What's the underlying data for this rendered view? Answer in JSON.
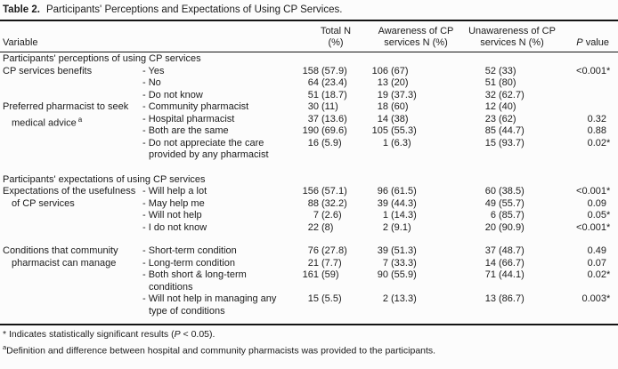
{
  "page": {
    "background": "#fcfcfc",
    "text_color": "#1b1b1b",
    "rule_color": "#141414"
  },
  "table": {
    "title": {
      "label": "Table 2.",
      "text": "Participants' Perceptions and Expectations of Using CP Services."
    },
    "header": {
      "variable": "Variable",
      "total_line1": "Total N",
      "total_line2": "(%)",
      "aware_line1": "Awareness of CP",
      "aware_line2": "services N (%)",
      "unaware_line1": "Unawareness of CP",
      "unaware_line2": "services N (%)",
      "p_italic": "P",
      "p_rest": " value"
    },
    "sections": [
      {
        "header": "Participants' perceptions of using CP services",
        "groups": [
          {
            "var1": "CP services benefits",
            "rows": [
              {
                "item": "- Yes",
                "total": "158 (57.9)",
                "aware": "106 (67)",
                "unaware": "52 (33)",
                "p": "<0.001*"
              },
              {
                "item": "- No",
                "total": "64 (23.4)",
                "aware": "13 (20)",
                "unaware": "51 (80)",
                "p": ""
              },
              {
                "item": "- Do not know",
                "total": "51 (18.7)",
                "aware": "19 (37.3)",
                "unaware": "32 (62.7)",
                "p": ""
              }
            ]
          },
          {
            "var1": "Preferred pharmacist to seek",
            "var2": "medical advice",
            "var2_sup": "a",
            "rows": [
              {
                "item": "- Community pharmacist",
                "total": "30 (11)",
                "aware": "18 (60)",
                "unaware": "12 (40)",
                "p": ""
              },
              {
                "item": "- Hospital pharmacist",
                "total": "37 (13.6)",
                "aware": "14 (38)",
                "unaware": "23 (62)",
                "p": "0.32"
              },
              {
                "item": "- Both are the same",
                "total": "190 (69.6)",
                "aware": "105 (55.3)",
                "unaware": "85 (44.7)",
                "p": "0.88"
              },
              {
                "item": "- Do not appreciate the care",
                "item2": "provided by any pharmacist",
                "total": "16 (5.9)",
                "aware": "1 (6.3)",
                "unaware": "15 (93.7)",
                "p": "0.02*"
              }
            ]
          }
        ]
      },
      {
        "header": "Participants' expectations of using CP services",
        "groups": [
          {
            "var1": "Expectations of the usefulness",
            "var2": "of CP services",
            "rows": [
              {
                "item": "- Will help a lot",
                "total": "156 (57.1)",
                "aware": "96 (61.5)",
                "unaware": "60 (38.5)",
                "p": "<0.001*"
              },
              {
                "item": "- May help me",
                "total": "88 (32.2)",
                "aware": "39 (44.3)",
                "unaware": "49 (55.7)",
                "p": "0.09"
              },
              {
                "item": "- Will not help",
                "total": "7 (2.6)",
                "aware": "1 (14.3)",
                "unaware": "6 (85.7)",
                "p": "0.05*"
              },
              {
                "item": "- I do not know",
                "total": "22 (8)",
                "aware": "2 (9.1)",
                "unaware": "20 (90.9)",
                "p": "<0.001*"
              }
            ]
          },
          {
            "var1": "Conditions that community",
            "var2": "pharmacist can manage",
            "rows": [
              {
                "item": "- Short-term condition",
                "total": "76 (27.8)",
                "aware": "39 (51.3)",
                "unaware": "37 (48.7)",
                "p": "0.49"
              },
              {
                "item": "- Long-term condition",
                "total": "21 (7.7)",
                "aware": "7 (33.3)",
                "unaware": "14 (66.7)",
                "p": "0.07"
              },
              {
                "item": "- Both short & long-term",
                "item2": "conditions",
                "total": "161 (59)",
                "aware": "90 (55.9)",
                "unaware": "71 (44.1)",
                "p": "0.02*"
              },
              {
                "item": "- Will not help in managing any",
                "item2": "type of conditions",
                "total": "15 (5.5)",
                "aware": "2 (13.3)",
                "unaware": "13 (86.7)",
                "p": "0.003*"
              }
            ]
          }
        ]
      }
    ],
    "footnotes": {
      "sig": {
        "marker": "*",
        "pre": " Indicates statistically significant results (",
        "p": "P",
        "post": " < 0.05)."
      },
      "def": {
        "marker": "a",
        "text": "Definition and difference between hospital and community pharmacists was provided to the participants."
      }
    }
  }
}
